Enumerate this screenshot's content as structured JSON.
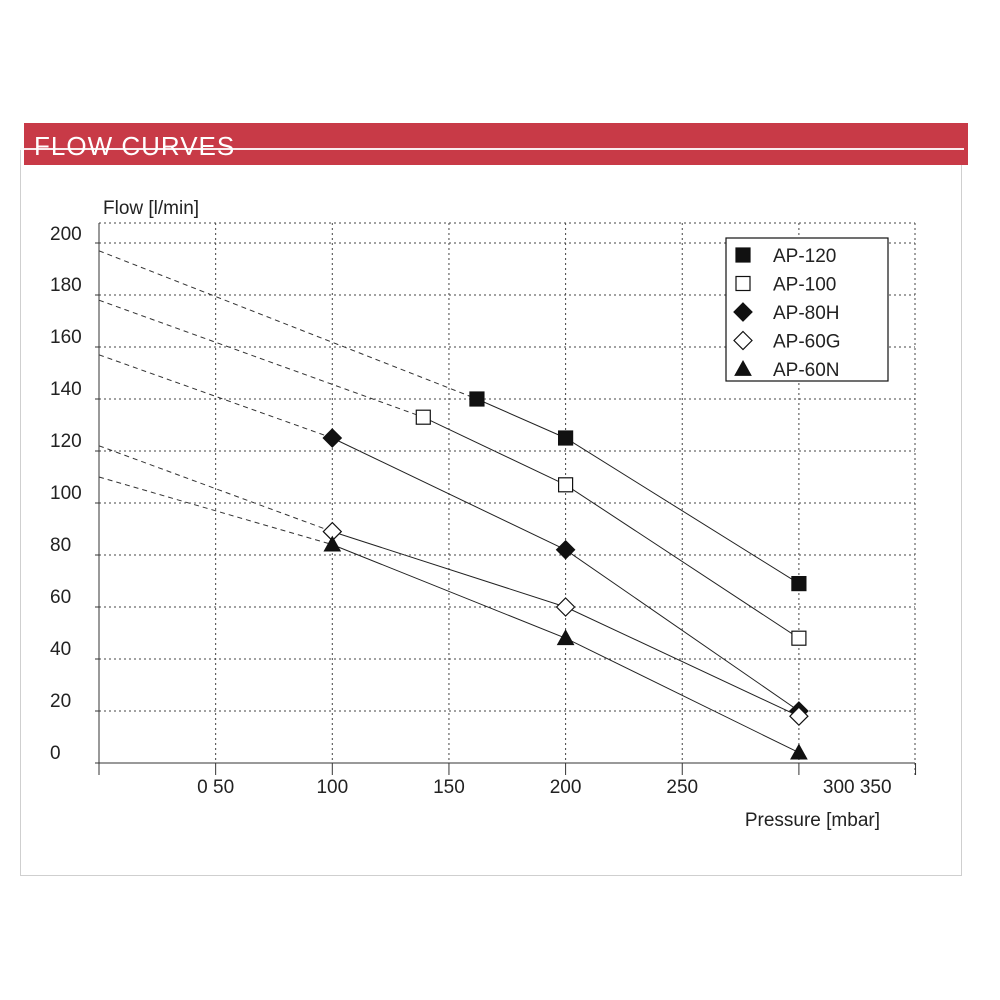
{
  "header": {
    "title": "FLOW CURVES"
  },
  "chart_data": {
    "type": "line",
    "ylabel": "Flow [l/min]",
    "xlabel": "Pressure [mbar]",
    "xlim": [
      0,
      350
    ],
    "ylim": [
      0,
      200
    ],
    "x_tick_values": [
      0,
      50,
      100,
      150,
      200,
      250,
      300,
      350
    ],
    "y_ticks": [
      "200",
      "180",
      "160",
      "140",
      "120",
      "100",
      "80",
      "60",
      "40",
      "20",
      "0"
    ],
    "y_tick_values": [
      200,
      180,
      160,
      140,
      120,
      100,
      80,
      60,
      40,
      20,
      0
    ],
    "x_tick_labels": [
      {
        "text": "0 50",
        "at": 50
      },
      {
        "text": "100",
        "at": 100
      },
      {
        "text": "150",
        "at": 150
      },
      {
        "text": "200",
        "at": 200
      },
      {
        "text": "250",
        "at": 250
      },
      {
        "text": "300 350",
        "at": 325
      }
    ],
    "grid": true,
    "legend_position": "top-right",
    "series": [
      {
        "name": "AP-120",
        "marker": "square-filled",
        "points": [
          [
            162,
            140
          ],
          [
            200,
            125
          ],
          [
            300,
            69
          ]
        ],
        "extrapolation": [
          [
            0,
            197
          ],
          [
            162,
            140
          ]
        ]
      },
      {
        "name": "AP-100",
        "marker": "square-open",
        "points": [
          [
            139,
            133
          ],
          [
            200,
            107
          ],
          [
            300,
            48
          ]
        ],
        "extrapolation": [
          [
            0,
            178
          ],
          [
            139,
            133
          ]
        ]
      },
      {
        "name": "AP-80H",
        "marker": "diamond-filled",
        "points": [
          [
            100,
            125
          ],
          [
            200,
            82
          ],
          [
            300,
            20
          ]
        ],
        "extrapolation": [
          [
            0,
            157
          ],
          [
            100,
            125
          ]
        ]
      },
      {
        "name": "AP-60G",
        "marker": "diamond-open",
        "points": [
          [
            100,
            89
          ],
          [
            200,
            60
          ],
          [
            300,
            18
          ]
        ],
        "extrapolation": [
          [
            0,
            122
          ],
          [
            100,
            89
          ]
        ]
      },
      {
        "name": "AP-60N",
        "marker": "triangle-filled",
        "points": [
          [
            100,
            84
          ],
          [
            200,
            48
          ],
          [
            300,
            4
          ]
        ],
        "extrapolation": [
          [
            0,
            110
          ],
          [
            100,
            84
          ]
        ]
      }
    ]
  }
}
